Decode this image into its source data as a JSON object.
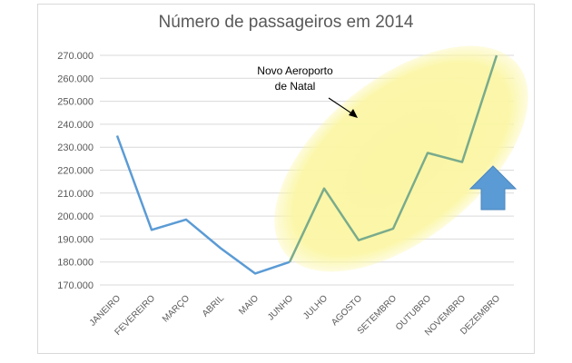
{
  "chart_data": {
    "type": "line",
    "title": "Número de passageiros em 2014",
    "categories": [
      "JANEIRO",
      "FEVEREIRO",
      "MARÇO",
      "ABRIL",
      "MAIO",
      "JUNHO",
      "JULHO",
      "AGOSTO",
      "SETEMBRO",
      "OUTUBRO",
      "NOVEMBRO",
      "DEZEMBRO"
    ],
    "series": [
      {
        "values": [
          235000,
          194000,
          198500,
          186000,
          175000,
          180000,
          212000,
          189500,
          194500,
          227500,
          223500,
          270000
        ]
      }
    ],
    "ylim": [
      170000,
      270000
    ],
    "yticks": [
      "170.000",
      "180.000",
      "190.000",
      "200.000",
      "210.000",
      "220.000",
      "230.000",
      "240.000",
      "250.000",
      "260.000",
      "270.000"
    ],
    "highlight_from_index": 5,
    "grid": true,
    "annotation": {
      "line1": "Novo Aeroporto",
      "line2": "de Natal"
    },
    "colors": {
      "before": "#5b9bd5",
      "after": "#7aab8c",
      "highlight": "#fbf6a5",
      "arrow": "#5b9bd5"
    }
  }
}
